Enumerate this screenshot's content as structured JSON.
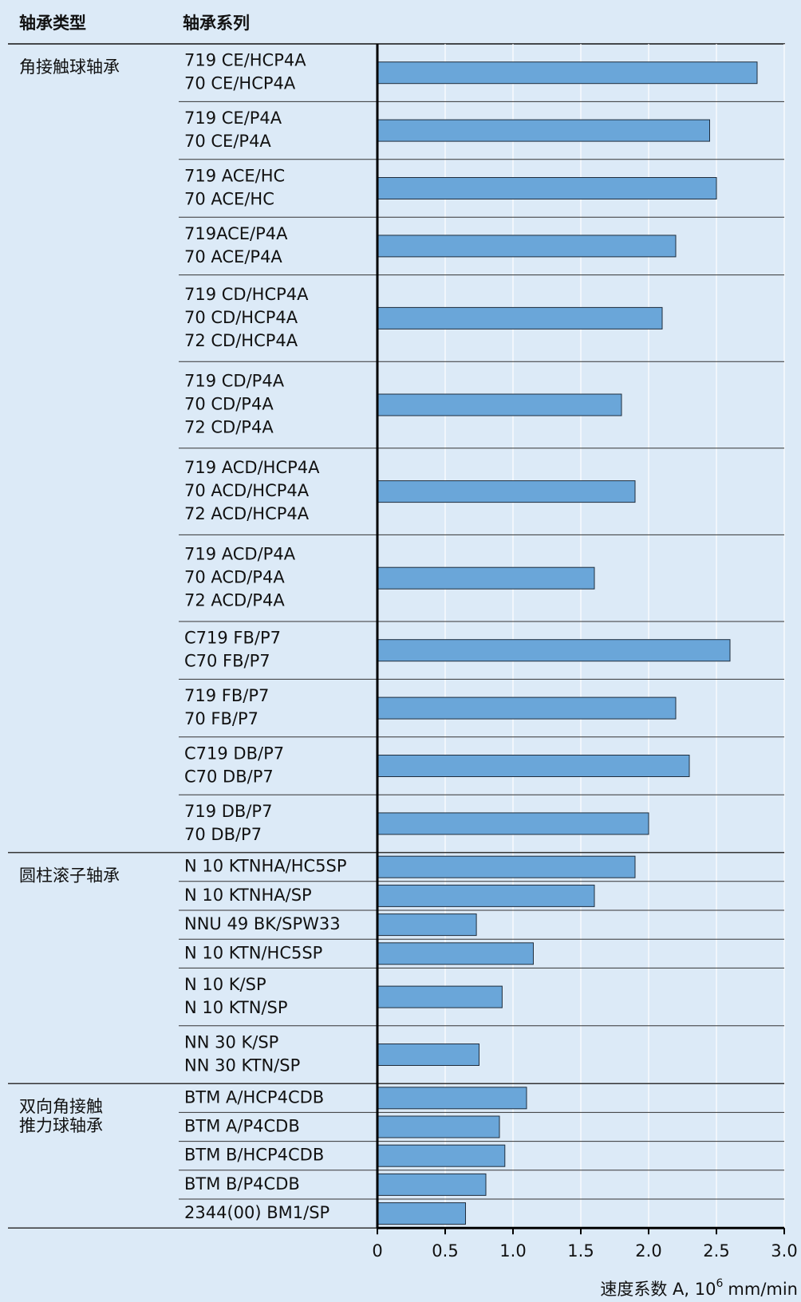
{
  "chart_data": {
    "type": "bar",
    "headers": [
      "轴承类型",
      "轴承系列"
    ],
    "groups": [
      {
        "name": [
          "角接触球轴承"
        ],
        "categories": [
          [
            "719 CE/HCP4A",
            "70 CE/HCP4A"
          ],
          [
            "719 CE/P4A",
            "70 CE/P4A"
          ],
          [
            "719 ACE/HC",
            "70 ACE/HC"
          ],
          [
            "719ACE/P4A",
            "70 ACE/P4A"
          ],
          [
            "719 CD/HCP4A",
            "70 CD/HCP4A",
            "72 CD/HCP4A"
          ],
          [
            "719 CD/P4A",
            "70 CD/P4A",
            "72 CD/P4A"
          ],
          [
            "719 ACD/HCP4A",
            "70 ACD/HCP4A",
            "72 ACD/HCP4A"
          ],
          [
            "719 ACD/P4A",
            "70 ACD/P4A",
            "72 ACD/P4A"
          ],
          [
            "C719 FB/P7",
            "C70 FB/P7"
          ],
          [
            "719 FB/P7",
            "70 FB/P7"
          ],
          [
            "C719 DB/P7",
            "C70 DB/P7"
          ],
          [
            "719 DB/P7",
            "70 DB/P7"
          ]
        ],
        "values": [
          2.8,
          2.45,
          2.5,
          2.2,
          2.1,
          1.8,
          1.9,
          1.6,
          2.6,
          2.2,
          2.3,
          2.0
        ]
      },
      {
        "name": [
          "圆柱滚子轴承"
        ],
        "categories": [
          [
            "N 10 KTNHA/HC5SP"
          ],
          [
            "N 10 KTNHA/SP"
          ],
          [
            "NNU 49 BK/SPW33"
          ],
          [
            "N 10 KTN/HC5SP"
          ],
          [
            "N 10 K/SP",
            "N 10 KTN/SP"
          ],
          [
            "NN 30 K/SP",
            "NN 30 KTN/SP"
          ]
        ],
        "values": [
          1.9,
          1.6,
          0.73,
          1.15,
          0.92,
          0.75
        ]
      },
      {
        "name": [
          "双向角接触",
          "推力球轴承"
        ],
        "categories": [
          [
            "BTM A/HCP4CDB"
          ],
          [
            "BTM A/P4CDB"
          ],
          [
            "BTM B/HCP4CDB"
          ],
          [
            "BTM B/P4CDB"
          ],
          [
            "2344(00) BM1/SP"
          ]
        ],
        "values": [
          1.1,
          0.9,
          0.94,
          0.8,
          0.65
        ]
      }
    ],
    "color": "#6aa6d9",
    "xlim": [
      0,
      3.0
    ],
    "xticks": [
      0,
      0.5,
      {
        "value": 1.0,
        "label": "1.0"
      },
      1.5,
      {
        "value": 2.0,
        "label": "2.0"
      },
      2.5,
      {
        "value": 3.0,
        "label": "3.0"
      }
    ],
    "grid": true,
    "x_label": "速度系数 A, 10",
    "x_label_sup": "6",
    "x_label_unit": "mm/min"
  }
}
